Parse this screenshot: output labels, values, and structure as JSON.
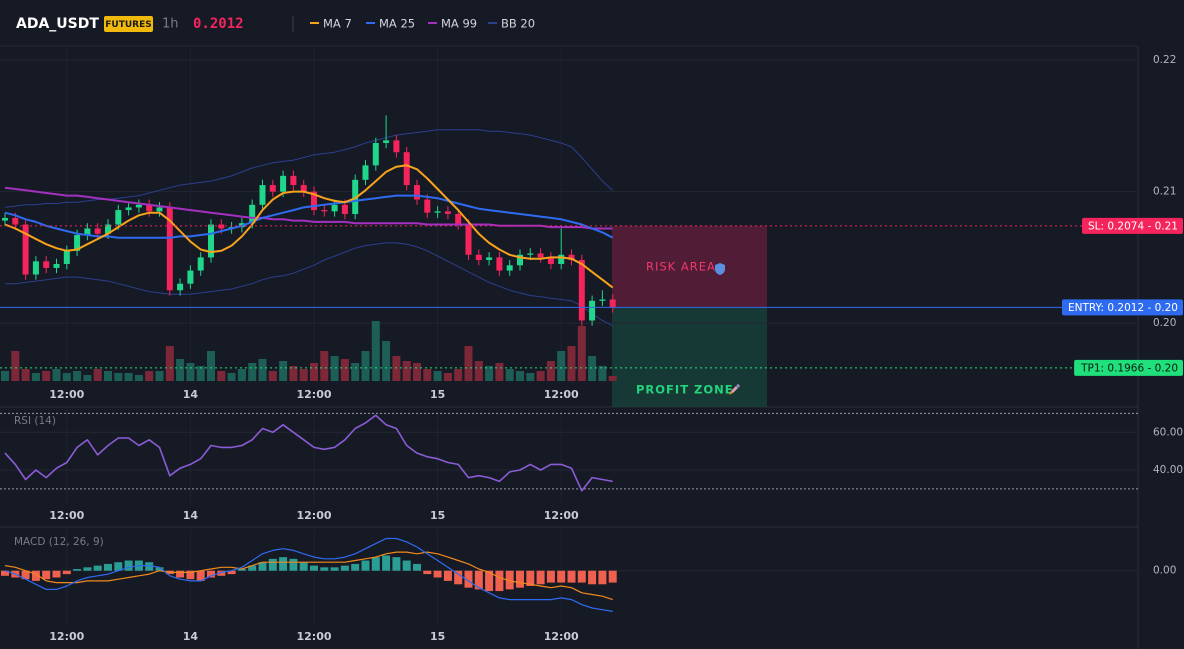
{
  "header": {
    "symbol": "ADA_USDT",
    "badge": "FUTURES",
    "interval": "1h",
    "price": 0.2012
  },
  "chart_data": [
    {
      "type": "candlestick",
      "categories": [
        null,
        null,
        null,
        null,
        null,
        null,
        "12:00",
        null,
        null,
        null,
        null,
        null,
        null,
        null,
        null,
        null,
        null,
        null,
        "14",
        null,
        null,
        null,
        null,
        null,
        null,
        null,
        null,
        null,
        null,
        null,
        "12:00",
        null,
        null,
        null,
        null,
        null,
        null,
        null,
        null,
        null,
        null,
        null,
        "15",
        null,
        null,
        null,
        null,
        null,
        null,
        null,
        null,
        null,
        null,
        null,
        "12:00",
        null,
        null,
        null,
        null,
        null
      ],
      "open": [
        0.2078,
        0.208,
        0.2075,
        0.2037,
        0.2047,
        0.2042,
        0.2045,
        0.2055,
        0.2067,
        0.2072,
        0.2068,
        0.2075,
        0.2086,
        0.2088,
        0.209,
        0.2085,
        0.2088,
        0.2025,
        0.203,
        0.204,
        0.205,
        0.2075,
        0.2072,
        0.2073,
        0.2076,
        0.209,
        0.2105,
        0.21,
        0.2112,
        0.2105,
        0.21,
        0.2086,
        0.2085,
        0.209,
        0.2083,
        0.2109,
        0.212,
        0.2137,
        0.2139,
        0.213,
        0.2105,
        0.2094,
        0.2084,
        0.2085,
        0.2083,
        0.2075,
        0.2052,
        0.2048,
        0.205,
        0.204,
        0.2044,
        0.2052,
        0.2053,
        0.205,
        0.2045,
        0.2052,
        0.2048,
        0.2002,
        0.2017,
        0.2018
      ],
      "high": [
        0.2084,
        0.2084,
        0.2079,
        0.2051,
        0.2051,
        0.2049,
        0.2059,
        0.2071,
        0.2076,
        0.2076,
        0.2079,
        0.209,
        0.2092,
        0.2094,
        0.2094,
        0.2092,
        0.2092,
        0.2034,
        0.2044,
        0.2054,
        0.2079,
        0.2079,
        0.2077,
        0.208,
        0.2094,
        0.2109,
        0.2109,
        0.2116,
        0.2116,
        0.2109,
        0.2104,
        0.209,
        0.2094,
        0.2094,
        0.2113,
        0.2124,
        0.2141,
        0.2158,
        0.2143,
        0.2134,
        0.2109,
        0.2098,
        0.2089,
        0.2089,
        0.2087,
        0.2079,
        0.2056,
        0.2054,
        0.2054,
        0.2048,
        0.2056,
        0.2057,
        0.2057,
        0.2054,
        0.2072,
        0.2056,
        0.2052,
        0.2021,
        0.2025,
        0.2022
      ],
      "low": [
        0.2074,
        0.2071,
        0.2033,
        0.2033,
        0.2038,
        0.2038,
        0.2041,
        0.2051,
        0.2063,
        0.2064,
        0.2064,
        0.2071,
        0.2082,
        0.2084,
        0.2081,
        0.2081,
        0.2021,
        0.2021,
        0.2026,
        0.2036,
        0.2046,
        0.2068,
        0.2068,
        0.2069,
        0.2072,
        0.2086,
        0.2096,
        0.2096,
        0.2101,
        0.2096,
        0.2082,
        0.2081,
        0.2081,
        0.2079,
        0.2079,
        0.2105,
        0.2116,
        0.2133,
        0.2126,
        0.2101,
        0.209,
        0.208,
        0.208,
        0.2079,
        0.2071,
        0.2048,
        0.2044,
        0.2044,
        0.2036,
        0.2036,
        0.204,
        0.2048,
        0.2046,
        0.2041,
        0.2041,
        0.2044,
        0.1998,
        0.1998,
        0.2013,
        0.2008
      ],
      "close": [
        0.208,
        0.2075,
        0.2037,
        0.2047,
        0.2042,
        0.2045,
        0.2055,
        0.2067,
        0.2072,
        0.2068,
        0.2075,
        0.2086,
        0.2088,
        0.209,
        0.2085,
        0.2088,
        0.2025,
        0.203,
        0.204,
        0.205,
        0.2075,
        0.2072,
        0.2073,
        0.2076,
        0.209,
        0.2105,
        0.21,
        0.2112,
        0.2105,
        0.21,
        0.2086,
        0.2085,
        0.209,
        0.2083,
        0.2109,
        0.212,
        0.2137,
        0.2139,
        0.213,
        0.2105,
        0.2094,
        0.2084,
        0.2085,
        0.2083,
        0.2075,
        0.2052,
        0.2048,
        0.205,
        0.204,
        0.2044,
        0.2052,
        0.2053,
        0.205,
        0.2045,
        0.2052,
        0.2048,
        0.2002,
        0.2017,
        0.2018,
        0.2012
      ],
      "volume": [
        10,
        30,
        12,
        8,
        10,
        12,
        8,
        10,
        6,
        12,
        10,
        8,
        8,
        6,
        10,
        10,
        35,
        22,
        18,
        15,
        30,
        10,
        8,
        12,
        18,
        22,
        10,
        20,
        15,
        12,
        18,
        30,
        25,
        22,
        18,
        30,
        60,
        40,
        25,
        20,
        18,
        12,
        10,
        8,
        12,
        35,
        20,
        15,
        18,
        12,
        10,
        8,
        10,
        20,
        30,
        35,
        55,
        25,
        15,
        5
      ],
      "colors": {
        "up": "#1fd68a",
        "down": "#f5245c",
        "volume_up": "#1d5f57",
        "volume_down": "#7c2838"
      },
      "series": [
        {
          "name": "MA 7",
          "color": "#f7a21b",
          "values": [
            0.2075,
            0.2072,
            0.2068,
            0.2064,
            0.206,
            0.2057,
            0.2055,
            0.2056,
            0.206,
            0.2064,
            0.2068,
            0.2073,
            0.2078,
            0.2082,
            0.2084,
            0.2084,
            0.2078,
            0.207,
            0.2062,
            0.2056,
            0.2054,
            0.2055,
            0.2059,
            0.2066,
            0.2075,
            0.2086,
            0.2094,
            0.2099,
            0.21,
            0.21,
            0.2098,
            0.2095,
            0.2093,
            0.2092,
            0.2095,
            0.2101,
            0.2108,
            0.2115,
            0.2119,
            0.212,
            0.2117,
            0.211,
            0.2102,
            0.2094,
            0.2086,
            0.2077,
            0.2068,
            0.2061,
            0.2056,
            0.2052,
            0.205,
            0.2049,
            0.2049,
            0.205,
            0.205,
            0.2049,
            0.2045,
            0.2039,
            0.2033,
            0.2027
          ]
        },
        {
          "name": "MA 25",
          "color": "#2f6bf0",
          "values": [
            0.2084,
            0.2082,
            0.2079,
            0.2077,
            0.2074,
            0.2072,
            0.207,
            0.2068,
            0.2067,
            0.2066,
            0.2066,
            0.2065,
            0.2065,
            0.2065,
            0.2065,
            0.2065,
            0.2065,
            0.2066,
            0.2066,
            0.2067,
            0.2068,
            0.207,
            0.2072,
            0.2074,
            0.2077,
            0.208,
            0.2082,
            0.2084,
            0.2086,
            0.2088,
            0.2089,
            0.209,
            0.2091,
            0.2092,
            0.2093,
            0.2094,
            0.2095,
            0.2096,
            0.2097,
            0.2097,
            0.2097,
            0.2096,
            0.2095,
            0.2093,
            0.2091,
            0.2089,
            0.2087,
            0.2086,
            0.2085,
            0.2084,
            0.2083,
            0.2082,
            0.2081,
            0.208,
            0.2079,
            0.2077,
            0.2075,
            0.2072,
            0.2069,
            0.2065
          ]
        },
        {
          "name": "MA 99",
          "color": "#a430c0",
          "values": [
            0.2103,
            0.2102,
            0.2101,
            0.21,
            0.2099,
            0.2098,
            0.2097,
            0.2097,
            0.2096,
            0.2095,
            0.2094,
            0.2093,
            0.2092,
            0.2091,
            0.209,
            0.2089,
            0.2088,
            0.2087,
            0.2086,
            0.2085,
            0.2084,
            0.2083,
            0.2082,
            0.2081,
            0.208,
            0.208,
            0.2079,
            0.2079,
            0.2078,
            0.2078,
            0.2077,
            0.2077,
            0.2077,
            0.2077,
            0.2076,
            0.2076,
            0.2076,
            0.2076,
            0.2076,
            0.2076,
            0.2076,
            0.2075,
            0.2075,
            0.2075,
            0.2075,
            0.2075,
            0.2075,
            0.2075,
            0.2074,
            0.2074,
            0.2074,
            0.2074,
            0.2074,
            0.2073,
            0.2073,
            0.2073,
            0.2073,
            0.2072,
            0.2072,
            0.2072
          ]
        },
        {
          "name": "BB 20",
          "color": "#2c3f8f",
          "upper": [
            0.2088,
            0.2089,
            0.209,
            0.209,
            0.2091,
            0.2091,
            0.2092,
            0.2092,
            0.2093,
            0.2094,
            0.2094,
            0.2095,
            0.2096,
            0.2097,
            0.2099,
            0.2101,
            0.2103,
            0.2105,
            0.2106,
            0.2107,
            0.2108,
            0.211,
            0.2112,
            0.2115,
            0.2118,
            0.212,
            0.2122,
            0.2123,
            0.2124,
            0.2126,
            0.2128,
            0.2129,
            0.213,
            0.2132,
            0.2134,
            0.2137,
            0.2139,
            0.2141,
            0.2143,
            0.2144,
            0.2145,
            0.2146,
            0.2147,
            0.2147,
            0.2147,
            0.2147,
            0.2147,
            0.2146,
            0.2146,
            0.2145,
            0.2144,
            0.2143,
            0.2141,
            0.2139,
            0.2137,
            0.2134,
            0.2126,
            0.2117,
            0.2108,
            0.2101
          ],
          "lower": [
            0.203,
            0.203,
            0.2031,
            0.2032,
            0.2033,
            0.2034,
            0.2035,
            0.2035,
            0.2034,
            0.2033,
            0.2032,
            0.203,
            0.2028,
            0.2026,
            0.2024,
            0.2023,
            0.2022,
            0.2022,
            0.2022,
            0.2023,
            0.2024,
            0.2025,
            0.2026,
            0.2028,
            0.203,
            0.2033,
            0.2035,
            0.2036,
            0.2038,
            0.2041,
            0.2044,
            0.2048,
            0.2051,
            0.2054,
            0.2057,
            0.2059,
            0.206,
            0.2061,
            0.2061,
            0.206,
            0.2058,
            0.2055,
            0.2051,
            0.2047,
            0.2043,
            0.2039,
            0.2035,
            0.2031,
            0.2028,
            0.2025,
            0.2023,
            0.2021,
            0.202,
            0.2019,
            0.2018,
            0.2017,
            0.2013,
            0.2007,
            0.2002,
            0.1998
          ]
        }
      ],
      "ylim": [
        0.1956,
        0.221
      ],
      "yticks": [
        0.22,
        0.21,
        {
          "value": 0.2,
          "label": "0.20"
        }
      ],
      "grid": true,
      "levels": [
        {
          "value": 0.2074,
          "label": "SL: 0.2074 - 0.21",
          "color": "#f5245c",
          "text_color": "#ffffff",
          "style": "dotted"
        },
        {
          "value": 0.2012,
          "label": "ENTRY: 0.2012 - 0.20",
          "color": "#2f6bf0",
          "text_color": "#ffffff",
          "style": "solid"
        },
        {
          "value": 0.1966,
          "label": "TP1: 0.1966 - 0.20",
          "color": "#1fe07a",
          "text_color": "#0b1a12",
          "style": "dotted"
        }
      ],
      "zones": [
        {
          "label": "RISK AREA",
          "color": "#5c1e3a",
          "text_color": "#f0386a"
        },
        {
          "label": "PROFIT ZONE",
          "color": "#163f38",
          "text_color": "#22d47b"
        }
      ]
    },
    {
      "type": "line",
      "title": "RSI (14)",
      "color": "#8a5cd6",
      "values": [
        49,
        43,
        35,
        40,
        36,
        41,
        44,
        52,
        56,
        48,
        53,
        57,
        57,
        53,
        56,
        52,
        37,
        41,
        43,
        46,
        53,
        52,
        52,
        53,
        56,
        62,
        60,
        64,
        60,
        56,
        52,
        51,
        52,
        56,
        62,
        65,
        69,
        64,
        62,
        53,
        49,
        47,
        46,
        44,
        43,
        36,
        37,
        36,
        34,
        39,
        40,
        43,
        40,
        43,
        43,
        41,
        29,
        36,
        35,
        34
      ],
      "ylim": [
        22,
        75
      ],
      "yticks": [
        {
          "value": 60,
          "label": "60.00"
        },
        {
          "value": 40,
          "label": "40.00"
        }
      ],
      "bands": [
        70,
        30
      ]
    },
    {
      "type": "macd",
      "title": "MACD (12, 26, 9)",
      "histogram": [
        -0.00015,
        -0.0002,
        -0.00025,
        -0.0003,
        -0.00025,
        -0.0002,
        -0.0001,
        5e-05,
        0.0001,
        0.00015,
        0.0002,
        0.00025,
        0.0003,
        0.0003,
        0.00025,
        0.0001,
        -0.0001,
        -0.0002,
        -0.00025,
        -0.0003,
        -0.0002,
        -0.00015,
        -0.0001,
        5e-05,
        0.00015,
        0.00025,
        0.00035,
        0.0004,
        0.00035,
        0.00025,
        0.00015,
        0.0001,
        0.0001,
        0.00015,
        0.0002,
        0.0003,
        0.0004,
        0.00045,
        0.0004,
        0.0003,
        0.0002,
        -0.0001,
        -0.0002,
        -0.0003,
        -0.0004,
        -0.0005,
        -0.00055,
        -0.0006,
        -0.0006,
        -0.00055,
        -0.0005,
        -0.00045,
        -0.0004,
        -0.00035,
        -0.00035,
        -0.00035,
        -0.00035,
        -0.0004,
        -0.0004,
        -0.00035
      ],
      "macd_line": [
        0,
        -0.0001,
        -0.00025,
        -0.0004,
        -0.00055,
        -0.00055,
        -0.00045,
        -0.0003,
        -0.0002,
        -0.00015,
        -0.0001,
        0,
        0.0001,
        0.00015,
        0.00015,
        0.0001,
        -0.00015,
        -0.00025,
        -0.0003,
        -0.0003,
        -0.00015,
        -5e-05,
        0,
        0.0001,
        0.0003,
        0.0005,
        0.0006,
        0.00065,
        0.0006,
        0.0005,
        0.0004,
        0.00035,
        0.00035,
        0.0004,
        0.0005,
        0.00065,
        0.0008,
        0.00095,
        0.00095,
        0.00085,
        0.0007,
        0.0005,
        0.0003,
        0.0001,
        -0.0001,
        -0.0003,
        -0.0005,
        -0.00065,
        -0.0008,
        -0.00085,
        -0.00085,
        -0.00085,
        -0.00085,
        -0.00085,
        -0.0008,
        -0.00085,
        -0.001,
        -0.0011,
        -0.00115,
        -0.0012
      ],
      "signal_line": [
        0.00015,
        0.0001,
        0,
        -0.0001,
        -0.0003,
        -0.00035,
        -0.00035,
        -0.00035,
        -0.0003,
        -0.0003,
        -0.0003,
        -0.00025,
        -0.0002,
        -0.00015,
        -0.0001,
        0,
        -5e-05,
        -5e-05,
        -5e-05,
        0,
        5e-05,
        0.0001,
        0.0001,
        5e-05,
        0.00015,
        0.00025,
        0.00025,
        0.00025,
        0.00025,
        0.00025,
        0.00025,
        0.00025,
        0.00025,
        0.00025,
        0.0003,
        0.00035,
        0.0004,
        0.0005,
        0.00055,
        0.00055,
        0.0005,
        0.00055,
        0.0005,
        0.0004,
        0.0003,
        0.0002,
        5e-05,
        -5e-05,
        -0.0002,
        -0.0003,
        -0.00035,
        -0.0004,
        -0.00045,
        -0.0005,
        -0.00045,
        -0.0005,
        -0.00065,
        -0.0007,
        -0.00075,
        -0.00085
      ],
      "colors": {
        "positive": "#2a9d95",
        "negative": "#f0604f",
        "macd_line": "#2f6bf0",
        "signal_line": "#f08a1c"
      },
      "ylim": [
        -0.0016,
        0.0012
      ],
      "yticks": [
        {
          "value": 0,
          "label": "0.00"
        }
      ]
    }
  ]
}
